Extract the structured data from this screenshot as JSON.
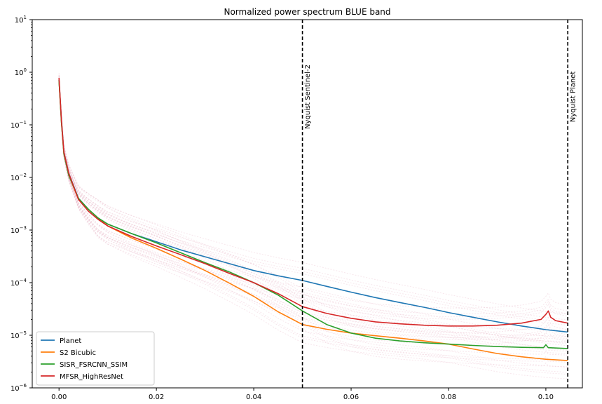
{
  "chart_data": {
    "type": "line",
    "title": "Normalized power spectrum BLUE band",
    "xlabel": "",
    "ylabel": "",
    "y_scale": "log",
    "xlim": [
      -0.0055,
      0.1075
    ],
    "ylim": [
      1e-06,
      10
    ],
    "x_ticks": [
      0.0,
      0.02,
      0.04,
      0.06,
      0.08,
      0.1
    ],
    "x_tick_labels": [
      "0.00",
      "0.02",
      "0.04",
      "0.06",
      "0.08",
      "0.10"
    ],
    "y_ticks": [
      1e-06,
      1e-05,
      0.0001,
      0.001,
      0.01,
      0.1,
      1,
      10
    ],
    "y_tick_labels": [
      {
        "base": "10",
        "exp": "−6"
      },
      {
        "base": "10",
        "exp": "−5"
      },
      {
        "base": "10",
        "exp": "−4"
      },
      {
        "base": "10",
        "exp": "−3"
      },
      {
        "base": "10",
        "exp": "−2"
      },
      {
        "base": "10",
        "exp": "−1"
      },
      {
        "base": "10",
        "exp": "0"
      },
      {
        "base": "10",
        "exp": "1"
      }
    ],
    "grid": false,
    "legend_position": "lower-left",
    "vlines": [
      {
        "x": 0.05,
        "label": "Nyquist Sentinel-2",
        "style": "dashed",
        "color": "#000000"
      },
      {
        "x": 0.1045,
        "label": "Nyquist Planet",
        "style": "dashed",
        "color": "#000000"
      }
    ],
    "series": [
      {
        "name": "Planet",
        "color": "#1f77b4",
        "points": [
          [
            0.0,
            0.72
          ],
          [
            0.0005,
            0.12
          ],
          [
            0.001,
            0.03
          ],
          [
            0.002,
            0.012
          ],
          [
            0.004,
            0.004
          ],
          [
            0.006,
            0.0025
          ],
          [
            0.008,
            0.0017
          ],
          [
            0.01,
            0.0013
          ],
          [
            0.015,
            0.00085
          ],
          [
            0.02,
            0.0006
          ],
          [
            0.025,
            0.00042
          ],
          [
            0.03,
            0.00031
          ],
          [
            0.035,
            0.00023
          ],
          [
            0.04,
            0.00017
          ],
          [
            0.045,
            0.000135
          ],
          [
            0.05,
            0.00011
          ],
          [
            0.055,
            8.5e-05
          ],
          [
            0.06,
            6.6e-05
          ],
          [
            0.065,
            5.2e-05
          ],
          [
            0.07,
            4.2e-05
          ],
          [
            0.075,
            3.4e-05
          ],
          [
            0.08,
            2.7e-05
          ],
          [
            0.085,
            2.2e-05
          ],
          [
            0.09,
            1.8e-05
          ],
          [
            0.095,
            1.5e-05
          ],
          [
            0.1,
            1.28e-05
          ],
          [
            0.1045,
            1.15e-05
          ]
        ]
      },
      {
        "name": "S2 Bicubic",
        "color": "#ff7f0e",
        "points": [
          [
            0.0,
            0.7
          ],
          [
            0.0005,
            0.11
          ],
          [
            0.001,
            0.028
          ],
          [
            0.002,
            0.011
          ],
          [
            0.004,
            0.0038
          ],
          [
            0.006,
            0.0025
          ],
          [
            0.008,
            0.0017
          ],
          [
            0.01,
            0.0012
          ],
          [
            0.015,
            0.0007
          ],
          [
            0.02,
            0.00045
          ],
          [
            0.025,
            0.00028
          ],
          [
            0.03,
            0.00017
          ],
          [
            0.035,
            9.8e-05
          ],
          [
            0.04,
            5.5e-05
          ],
          [
            0.045,
            2.8e-05
          ],
          [
            0.05,
            1.6e-05
          ],
          [
            0.055,
            1.3e-05
          ],
          [
            0.06,
            1.1e-05
          ],
          [
            0.065,
            9.8e-06
          ],
          [
            0.07,
            8.8e-06
          ],
          [
            0.075,
            7.8e-06
          ],
          [
            0.08,
            6.8e-06
          ],
          [
            0.085,
            5.5e-06
          ],
          [
            0.09,
            4.5e-06
          ],
          [
            0.095,
            3.9e-06
          ],
          [
            0.1,
            3.5e-06
          ],
          [
            0.1045,
            3.3e-06
          ]
        ]
      },
      {
        "name": "SISR_FSRCNN_SSIM",
        "color": "#2ca02c",
        "points": [
          [
            0.0,
            0.7
          ],
          [
            0.0005,
            0.11
          ],
          [
            0.001,
            0.028
          ],
          [
            0.002,
            0.011
          ],
          [
            0.004,
            0.004
          ],
          [
            0.006,
            0.0025
          ],
          [
            0.008,
            0.0017
          ],
          [
            0.01,
            0.0013
          ],
          [
            0.015,
            0.00085
          ],
          [
            0.02,
            0.00057
          ],
          [
            0.025,
            0.00037
          ],
          [
            0.03,
            0.00024
          ],
          [
            0.035,
            0.00016
          ],
          [
            0.04,
            0.0001
          ],
          [
            0.045,
            5.8e-05
          ],
          [
            0.05,
            2.9e-05
          ],
          [
            0.055,
            1.6e-05
          ],
          [
            0.06,
            1.1e-05
          ],
          [
            0.065,
            8.8e-06
          ],
          [
            0.07,
            7.8e-06
          ],
          [
            0.075,
            7.2e-06
          ],
          [
            0.08,
            6.8e-06
          ],
          [
            0.085,
            6.4e-06
          ],
          [
            0.09,
            6.1e-06
          ],
          [
            0.095,
            5.9e-06
          ],
          [
            0.0995,
            5.8e-06
          ],
          [
            0.1,
            6.6e-06
          ],
          [
            0.1005,
            5.8e-06
          ],
          [
            0.1045,
            5.6e-06
          ]
        ]
      },
      {
        "name": "MFSR_HighResNet",
        "color": "#d62728",
        "points": [
          [
            0.0,
            0.78
          ],
          [
            0.0005,
            0.12
          ],
          [
            0.001,
            0.03
          ],
          [
            0.002,
            0.012
          ],
          [
            0.004,
            0.0038
          ],
          [
            0.006,
            0.0023
          ],
          [
            0.008,
            0.0016
          ],
          [
            0.01,
            0.0012
          ],
          [
            0.015,
            0.00075
          ],
          [
            0.02,
            0.0005
          ],
          [
            0.025,
            0.00034
          ],
          [
            0.03,
            0.00023
          ],
          [
            0.035,
            0.00015
          ],
          [
            0.04,
            0.0001
          ],
          [
            0.045,
            6.2e-05
          ],
          [
            0.05,
            3.5e-05
          ],
          [
            0.055,
            2.6e-05
          ],
          [
            0.06,
            2.1e-05
          ],
          [
            0.065,
            1.8e-05
          ],
          [
            0.07,
            1.65e-05
          ],
          [
            0.075,
            1.55e-05
          ],
          [
            0.08,
            1.5e-05
          ],
          [
            0.085,
            1.5e-05
          ],
          [
            0.09,
            1.55e-05
          ],
          [
            0.095,
            1.7e-05
          ],
          [
            0.099,
            2e-05
          ],
          [
            0.1,
            2.5e-05
          ],
          [
            0.1005,
            2.9e-05
          ],
          [
            0.101,
            2.2e-05
          ],
          [
            0.102,
            1.9e-05
          ],
          [
            0.1045,
            1.7e-05
          ]
        ]
      }
    ]
  }
}
